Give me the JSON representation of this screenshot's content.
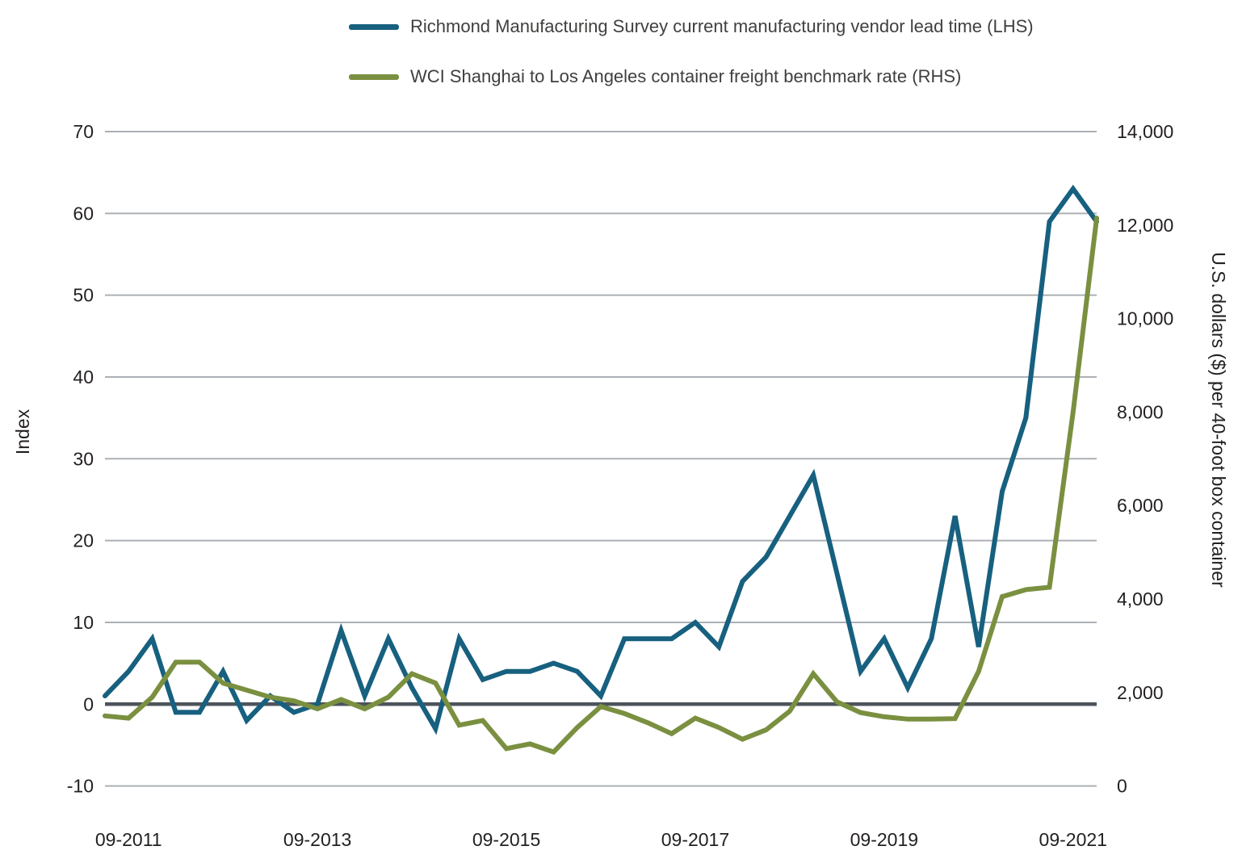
{
  "colors": {
    "background": "#FFFFFF",
    "grid": "#ACB0B5",
    "zero_line": "#4D545B",
    "text": "#231F20",
    "legend_text": "#3F3F3E",
    "richmond_blue": "#17607F",
    "wci_green": "#7A9040"
  },
  "chart_data": {
    "type": "line",
    "x": [
      "06-2011",
      "09-2011",
      "12-2011",
      "03-2012",
      "06-2012",
      "09-2012",
      "12-2012",
      "03-2013",
      "06-2013",
      "09-2013",
      "12-2013",
      "03-2014",
      "06-2014",
      "09-2014",
      "12-2014",
      "03-2015",
      "06-2015",
      "09-2015",
      "12-2015",
      "03-2016",
      "06-2016",
      "09-2016",
      "12-2016",
      "03-2017",
      "06-2017",
      "09-2017",
      "12-2017",
      "03-2018",
      "06-2018",
      "09-2018",
      "12-2018",
      "03-2019",
      "06-2019",
      "09-2019",
      "12-2019",
      "03-2020",
      "06-2020",
      "09-2020",
      "12-2020",
      "03-2021",
      "06-2021",
      "09-2021",
      "12-2021"
    ],
    "x_ticks": [
      {
        "i": 1,
        "label": "09-2011"
      },
      {
        "i": 9,
        "label": "09-2013"
      },
      {
        "i": 17,
        "label": "09-2015"
      },
      {
        "i": 25,
        "label": "09-2017"
      },
      {
        "i": 33,
        "label": "09-2019"
      },
      {
        "i": 41,
        "label": "09-2021"
      }
    ],
    "series": [
      {
        "name": "Richmond Manufacturing Survey current manufacturing vendor lead time (LHS)",
        "axis": "left",
        "color": "#17607F",
        "values": [
          1,
          4,
          8,
          -1,
          -1,
          4,
          -2,
          1,
          -1,
          0,
          9,
          1,
          8,
          2,
          -3,
          8,
          3,
          4,
          4,
          5,
          4,
          1,
          8,
          8,
          8,
          10,
          7,
          15,
          18,
          23,
          28,
          16,
          4,
          8,
          2,
          8,
          23,
          7,
          26,
          35,
          59,
          63,
          59
        ]
      },
      {
        "name": "WCI Shanghai to Los Angeles container freight benchmark rate (RHS)",
        "axis": "right",
        "color": "#7A9040",
        "values": [
          1500,
          1450,
          1900,
          2650,
          2650,
          2200,
          2050,
          1900,
          1820,
          1650,
          1850,
          1650,
          1900,
          2400,
          2200,
          1300,
          1400,
          800,
          900,
          725,
          1250,
          1700,
          1550,
          1350,
          1120,
          1450,
          1250,
          1000,
          1200,
          1600,
          2400,
          1800,
          1570,
          1480,
          1430,
          1430,
          1440,
          2450,
          4050,
          4200,
          4250,
          8000,
          12150
        ]
      }
    ],
    "left_axis": {
      "title": "Index",
      "min": -10,
      "max": 70,
      "ticks": [
        70,
        60,
        50,
        40,
        30,
        20,
        10,
        0,
        -10
      ]
    },
    "right_axis": {
      "title": "U.S. dollars ($) per 40-foot box container",
      "min": 0,
      "max": 14000,
      "ticks": [
        14000,
        12000,
        10000,
        8000,
        6000,
        4000,
        2000,
        0
      ],
      "tick_labels": [
        "14,000",
        "12,000",
        "10,000",
        "8,000",
        "6,000",
        "4,000",
        "2,000",
        "0"
      ]
    },
    "grid": "horizontal-only",
    "legend_position": "top-center",
    "title": ""
  }
}
